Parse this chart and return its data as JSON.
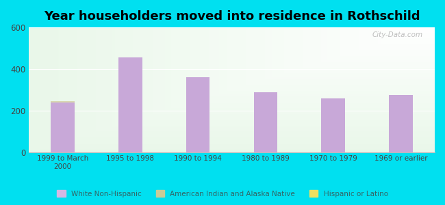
{
  "title": "Year householders moved into residence in Rothschild",
  "categories": [
    "1999 to March\n2000",
    "1995 to 1998",
    "1990 to 1994",
    "1980 to 1989",
    "1970 to 1979",
    "1969 or earlier"
  ],
  "white_non_hispanic": [
    240,
    455,
    360,
    290,
    260,
    275
  ],
  "american_indian": [
    8,
    0,
    0,
    0,
    0,
    0
  ],
  "hispanic": [
    0,
    0,
    0,
    0,
    0,
    0
  ],
  "bar_color_white": "#c8a8d8",
  "bar_color_indian": "#d8d8b0",
  "bar_color_hispanic": "#f0e060",
  "legend_color_white": "#d4b8e4",
  "legend_color_indian": "#c8cc98",
  "legend_color_hispanic": "#f0e060",
  "background_outer": "#00e0f0",
  "ylim": [
    0,
    600
  ],
  "yticks": [
    0,
    200,
    400,
    600
  ],
  "title_fontsize": 13,
  "watermark": "City-Data.com",
  "legend_labels": [
    "White Non-Hispanic",
    "American Indian and Alaska Native",
    "Hispanic or Latino"
  ]
}
